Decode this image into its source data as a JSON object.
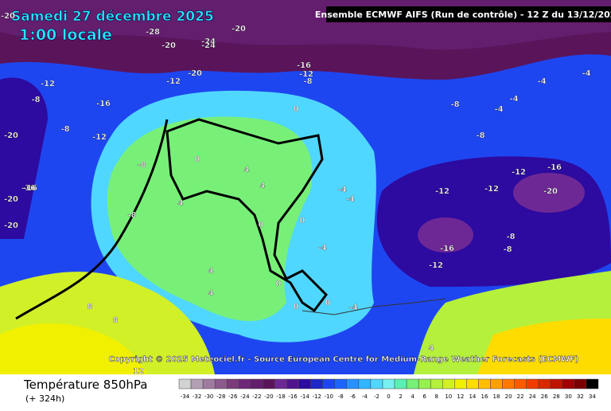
{
  "header": {
    "date": "Samedi 27 décembre 2025",
    "time": "1:00 locale",
    "model": "Ensemble ECMWF AIFS  (Run de contrôle)  - 12 Z du 13/12/2025"
  },
  "copyright": "Copyright © 2025 Meteociel.fr - Source European Centre for Medium-Range Weather Forecasts (ECMWF)",
  "footer": {
    "variable": "Température 850hPa",
    "lead": "(+ 324h)"
  },
  "scale": {
    "values": [
      -34,
      -32,
      -30,
      -28,
      -26,
      -24,
      -22,
      -20,
      -18,
      -16,
      -14,
      -12,
      -10,
      -8,
      -6,
      -4,
      -2,
      0,
      2,
      4,
      6,
      8,
      10,
      12,
      14,
      16,
      18,
      20,
      22,
      24,
      26,
      28,
      30,
      32,
      34
    ],
    "colors": [
      "#d2d2d2",
      "#b4a0b4",
      "#a07aa0",
      "#8c5a8c",
      "#7a3c7a",
      "#6e2878",
      "#641e6e",
      "#5a145a",
      "#6e2896",
      "#50148c",
      "#2d0aa0",
      "#1e28c8",
      "#1e46f0",
      "#1e64ff",
      "#2890ff",
      "#32b4ff",
      "#50d7ff",
      "#78f0f0",
      "#5af0b4",
      "#78f078",
      "#96f050",
      "#b4f03c",
      "#d2f028",
      "#f0f000",
      "#ffdc00",
      "#ffbe00",
      "#ffa000",
      "#ff7800",
      "#ff5a00",
      "#f03c00",
      "#d72800",
      "#be1400",
      "#a00000",
      "#780000",
      "#000000"
    ]
  },
  "map_labels": [
    -20,
    -24,
    -28,
    -20,
    -20,
    -24,
    -20,
    -12,
    -20,
    -16,
    -12,
    -8,
    -12,
    -8,
    -16,
    -12,
    -16,
    -20,
    -16,
    -20,
    -8,
    -8,
    -8,
    0,
    0,
    4,
    4,
    0,
    0,
    0,
    -4,
    -4,
    -4,
    -8,
    -8,
    -4,
    -4,
    -12,
    -12,
    -12,
    -16,
    -20,
    -16,
    -12,
    -8,
    -8,
    -4,
    -4,
    4,
    4,
    0,
    0,
    -4,
    8,
    8,
    12,
    4,
    4
  ]
}
